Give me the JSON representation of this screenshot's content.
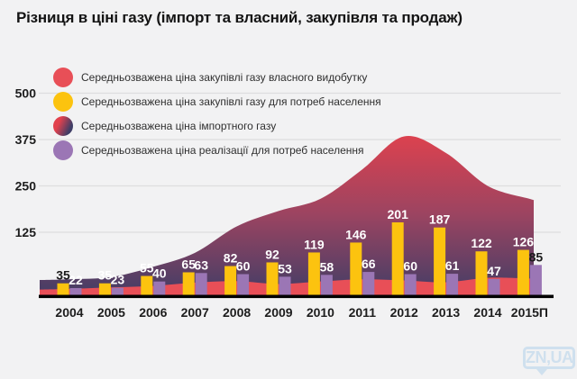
{
  "title": "Різниця в ціні газу (імпорт та власний, закупівля та продаж)",
  "watermark": "ZN,UA",
  "legend": {
    "items": [
      {
        "label": "Середньозважена ціна закупівлі газу власного видобутку",
        "color": "#e84f57"
      },
      {
        "label": "Середньозважена ціна закупівлі газу для потреб населення",
        "color": "#fcc30f"
      },
      {
        "label": "Середньозважена ціна імпортного газу",
        "gradient": [
          "#e2414d",
          "#3f3d66"
        ]
      },
      {
        "label": "Середньозважена ціна реалізації для потреб населення",
        "color": "#9b76b5"
      }
    ]
  },
  "chart_data": {
    "type": "area+bar combo",
    "title": "Різниця в ціні газу (імпорт та власний, закупівля та продаж)",
    "categories": [
      "2004",
      "2005",
      "2006",
      "2007",
      "2008",
      "2009",
      "2010",
      "2011",
      "2012",
      "2013",
      "2014",
      "2015П"
    ],
    "y_ticks": [
      500,
      375,
      250,
      125
    ],
    "ylim": [
      0,
      500
    ],
    "grid": true,
    "legend_position": "top-left",
    "series": [
      {
        "id": "own_production",
        "name": "Середньозважена ціна закупівлі газу власного видобутку",
        "type": "area",
        "color": "#e84f57",
        "values": [
          20,
          24,
          28,
          37,
          41,
          33,
          40,
          46,
          43,
          38,
          50,
          48
        ],
        "edge_values": [
          18,
          48
        ],
        "show_labels": false
      },
      {
        "id": "purchase_population",
        "name": "Середньозважена ціна закупівлі газу для потреб населення",
        "type": "bar",
        "color": "#fcc30f",
        "values": [
          35,
          35,
          55,
          65,
          82,
          92,
          119,
          146,
          201,
          187,
          122,
          126
        ],
        "show_labels": true,
        "label_color": "#ffffff",
        "dark_label_indices": [
          0
        ],
        "dark_label_color": "#1b1b1b"
      },
      {
        "id": "import_price",
        "name": "Середньозважена ціна імпортного газу",
        "type": "area",
        "gradient": [
          "#e2414d",
          "#9c4461",
          "#3f3d66"
        ],
        "values": [
          46,
          52,
          80,
          118,
          190,
          232,
          265,
          345,
          435,
          390,
          300,
          265
        ],
        "edge_values": [
          44,
          262
        ],
        "show_labels": false
      },
      {
        "id": "sale_population",
        "name": "Середньозважена ціна реалізації для потреб населення",
        "type": "bar",
        "color": "#9b76b5",
        "values": [
          22,
          23,
          40,
          63,
          60,
          53,
          58,
          66,
          60,
          61,
          47,
          85
        ],
        "show_labels": true,
        "label_color": "#ffffff",
        "dark_label_indices": [
          11
        ],
        "dark_label_color": "#1b1b1b"
      }
    ]
  }
}
